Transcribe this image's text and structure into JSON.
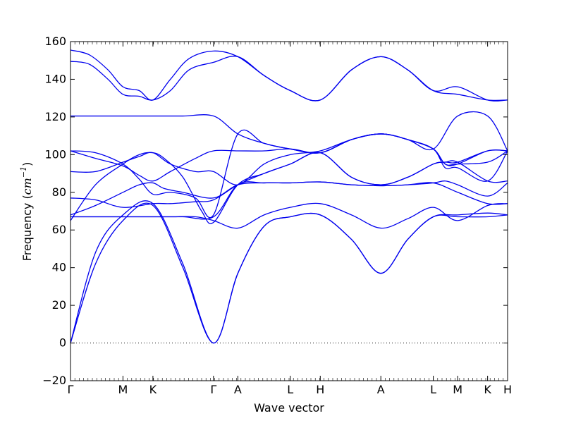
{
  "chart_data": {
    "type": "line",
    "title": "",
    "xlabel": "Wave vector",
    "ylabel": {
      "prefix": "Frequency (",
      "unit_base": "cm",
      "unit_exponent": "−1",
      "suffix": ")"
    },
    "ylim": [
      -20,
      160
    ],
    "yticks": [
      -20,
      0,
      20,
      40,
      60,
      80,
      100,
      120,
      140,
      160
    ],
    "xlim": [
      0,
      7
    ],
    "xticks": [
      {
        "label": "Γ",
        "x": 0
      },
      {
        "label": "M",
        "x": 0.84
      },
      {
        "label": "K",
        "x": 1.32
      },
      {
        "label": "Γ",
        "x": 2.29
      },
      {
        "label": "A",
        "x": 2.68
      },
      {
        "label": "L",
        "x": 3.52
      },
      {
        "label": "H",
        "x": 4.0
      },
      {
        "label": "A",
        "x": 4.97
      },
      {
        "label": "L",
        "x": 5.81
      },
      {
        "label": "M",
        "x": 6.2
      },
      {
        "label": "K",
        "x": 6.68
      },
      {
        "label": "H",
        "x": 7.0
      }
    ],
    "zero_line": true,
    "grid": false,
    "series_color": "#0000ee",
    "series": [
      {
        "x": [
          0,
          0.4,
          0.84,
          1.32,
          1.8,
          2.29,
          2.68,
          3.1,
          3.52,
          4.0,
          4.5,
          4.97,
          5.4,
          5.81,
          6.2,
          6.68,
          7.0
        ],
        "y": [
          0,
          42,
          65,
          73,
          40,
          0,
          37,
          62,
          67,
          68,
          55,
          37,
          55,
          67,
          67,
          67,
          68
        ]
      },
      {
        "x": [
          0,
          0.4,
          0.84,
          1.32,
          1.8,
          2.29,
          2.68,
          3.1,
          3.52,
          4.0,
          4.5,
          4.97,
          5.4,
          5.81,
          6.2,
          6.68,
          7.0
        ],
        "y": [
          0,
          48,
          68,
          74,
          42,
          0,
          37,
          62,
          67,
          68,
          55,
          37,
          55,
          67,
          68,
          69,
          68
        ]
      },
      {
        "x": [
          0,
          0.5,
          0.84,
          1.1,
          1.32,
          1.6,
          2.0,
          2.29,
          2.68,
          3.1,
          3.52,
          4.0,
          4.5,
          4.97,
          5.4,
          5.81,
          6.2,
          6.68,
          7.0
        ],
        "y": [
          67,
          67,
          67,
          67,
          67,
          67,
          67,
          65,
          61,
          68,
          72,
          74,
          68,
          61,
          66,
          72,
          65,
          73,
          74
        ]
      },
      {
        "x": [
          0,
          0.5,
          0.84,
          1.32,
          1.8,
          2.29,
          2.68,
          3.1,
          3.52,
          4.0,
          4.5,
          4.97,
          5.4,
          5.81,
          6.2,
          6.68,
          7.0
        ],
        "y": [
          67,
          67,
          67,
          67,
          67,
          67,
          84,
          85,
          85,
          85.5,
          84,
          83.5,
          84,
          85,
          80,
          74,
          74
        ]
      },
      {
        "x": [
          0,
          0.4,
          0.84,
          1.1,
          1.32,
          1.5,
          1.8,
          2.29,
          2.68,
          3.1,
          3.52,
          4.0,
          4.5,
          4.97,
          5.4,
          5.81,
          6.0,
          6.2,
          6.68,
          7.0
        ],
        "y": [
          68,
          73,
          80,
          84,
          85,
          82,
          80,
          77,
          84,
          85,
          85,
          85.5,
          84,
          83.5,
          84,
          85,
          86,
          84,
          78,
          85
        ]
      },
      {
        "x": [
          0,
          0.4,
          0.84,
          1.32,
          1.6,
          2.0,
          2.29,
          2.68,
          3.1,
          3.52,
          4.0,
          4.5,
          4.97,
          5.4,
          5.81,
          6.0,
          6.2,
          6.68,
          7.0
        ],
        "y": [
          77,
          76,
          72,
          74,
          74,
          75,
          76,
          84,
          90,
          95,
          101,
          88,
          84,
          88,
          95,
          96,
          96,
          86,
          86
        ]
      },
      {
        "x": [
          0,
          0.4,
          0.84,
          1.1,
          1.32,
          1.5,
          1.8,
          2.1,
          2.29,
          2.68,
          3.1,
          3.52,
          4.0,
          4.5,
          4.97,
          5.4,
          5.81,
          6.0,
          6.2,
          6.68,
          7.0
        ],
        "y": [
          65,
          84,
          95,
          100,
          101,
          98,
          88,
          70,
          64,
          84,
          90,
          95,
          101,
          88,
          84,
          88,
          95,
          96,
          96,
          102,
          102
        ]
      },
      {
        "x": [
          0,
          0.4,
          0.84,
          1.1,
          1.32,
          1.6,
          2.0,
          2.29,
          2.68,
          3.1,
          3.52,
          4.0,
          4.5,
          4.97,
          5.4,
          5.81,
          6.0,
          6.2,
          6.68,
          7.0
        ],
        "y": [
          91,
          91,
          96,
          99,
          101,
          95,
          91,
          91,
          84,
          95,
          100,
          102,
          108,
          111,
          108,
          103,
          95,
          95,
          102,
          102
        ]
      },
      {
        "x": [
          0,
          0.4,
          0.84,
          1.1,
          1.32,
          1.6,
          2.0,
          2.29,
          2.68,
          3.1,
          3.52,
          4.0,
          4.5,
          4.97,
          5.4,
          5.81,
          6.0,
          6.2,
          6.68,
          7.0
        ],
        "y": [
          102,
          98,
          94,
          89,
          86,
          91,
          98,
          102,
          102,
          102,
          103,
          101,
          108,
          111,
          108,
          103,
          93,
          93,
          86,
          102
        ]
      },
      {
        "x": [
          0,
          0.4,
          0.84,
          1.1,
          1.32,
          1.6,
          2.0,
          2.29,
          2.68,
          3.1,
          3.52,
          4.0,
          4.5,
          4.97,
          5.4,
          5.81,
          6.0,
          6.2,
          6.68,
          7.0
        ],
        "y": [
          102,
          101,
          95,
          87,
          79,
          80,
          77,
          68,
          111,
          106,
          103,
          101,
          108,
          111,
          108,
          103,
          95,
          95,
          96,
          102
        ]
      },
      {
        "x": [
          0,
          0.5,
          0.84,
          1.32,
          1.8,
          2.29,
          2.68,
          3.1,
          3.52,
          4.0,
          4.5,
          4.97,
          5.4,
          5.81,
          6.2,
          6.68,
          7.0
        ],
        "y": [
          120.5,
          120.5,
          120.5,
          120.5,
          120.5,
          120.5,
          111,
          106,
          103,
          101,
          108,
          111,
          108,
          103,
          120.5,
          120.5,
          102
        ]
      },
      {
        "x": [
          0,
          0.3,
          0.6,
          0.84,
          1.1,
          1.32,
          1.6,
          1.9,
          2.29,
          2.68,
          3.1,
          3.52,
          4.0,
          4.5,
          4.97,
          5.4,
          5.81,
          6.2,
          6.68,
          7.0
        ],
        "y": [
          149.5,
          148,
          140,
          132,
          131,
          129,
          134,
          145,
          149,
          152,
          142,
          134,
          129,
          145,
          152,
          145,
          134,
          132,
          129,
          129
        ]
      },
      {
        "x": [
          0,
          0.3,
          0.6,
          0.84,
          1.1,
          1.32,
          1.6,
          1.9,
          2.29,
          2.68,
          3.1,
          3.52,
          4.0,
          4.5,
          4.97,
          5.4,
          5.81,
          6.2,
          6.68,
          7.0
        ],
        "y": [
          155.5,
          153,
          145,
          136,
          134,
          129,
          140,
          151,
          155,
          152,
          142,
          134,
          129,
          145,
          152,
          145,
          134,
          136,
          129,
          129
        ]
      }
    ]
  }
}
